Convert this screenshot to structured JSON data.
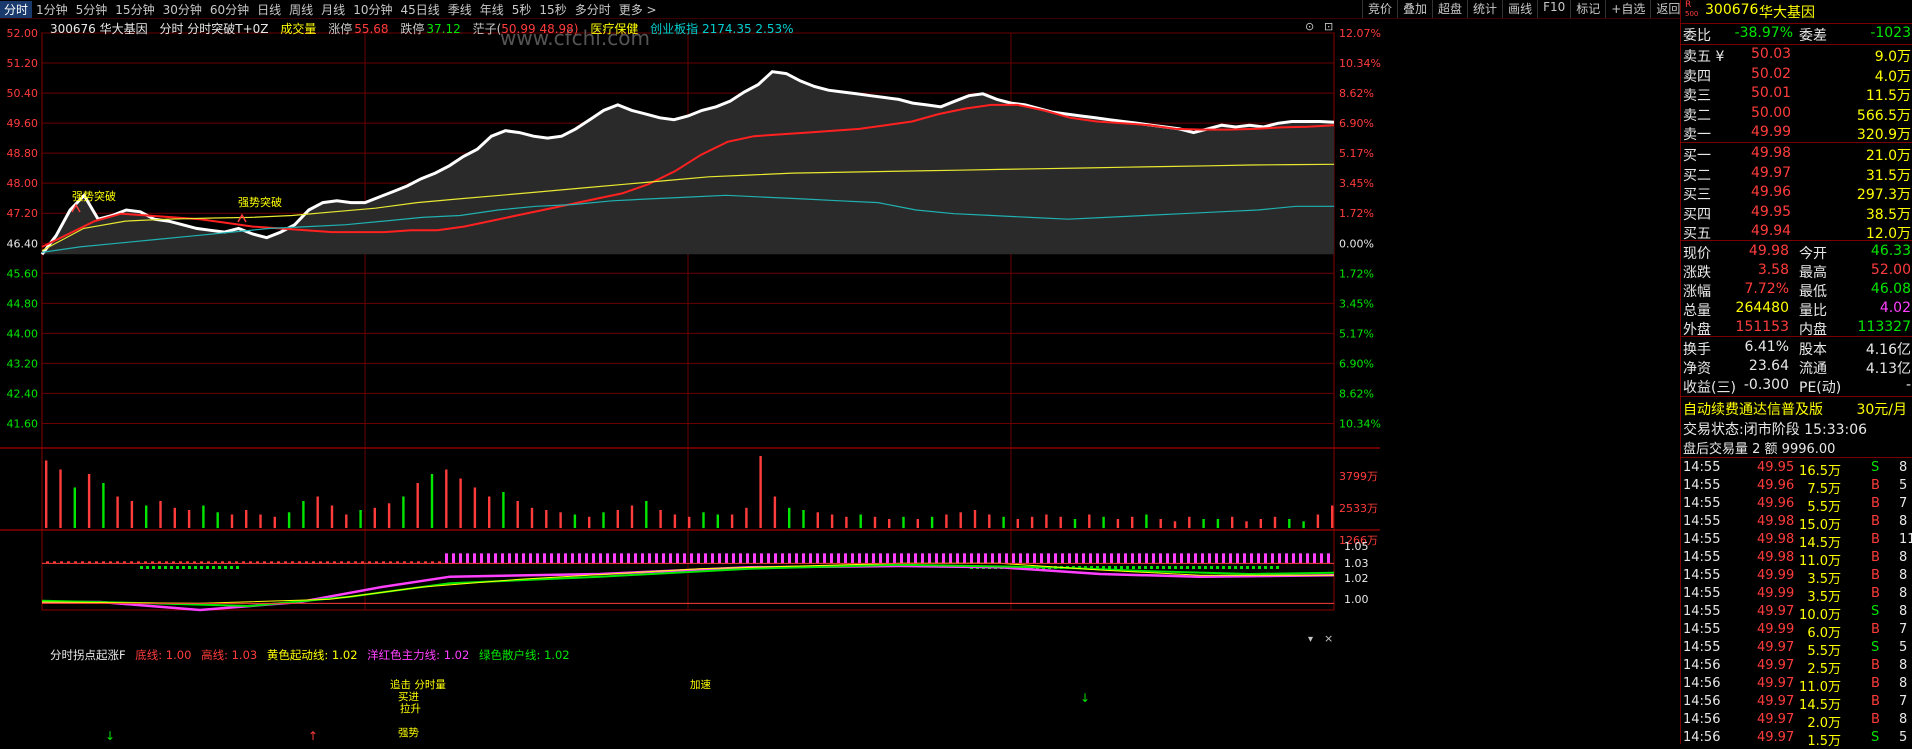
{
  "tabs": [
    {
      "label": "分时",
      "active": true
    },
    {
      "label": "1分钟"
    },
    {
      "label": "5分钟"
    },
    {
      "label": "15分钟"
    },
    {
      "label": "30分钟"
    },
    {
      "label": "60分钟"
    },
    {
      "label": "日线"
    },
    {
      "label": "周线"
    },
    {
      "label": "月线"
    },
    {
      "label": "10分钟"
    },
    {
      "label": "45日线"
    },
    {
      "label": "季线"
    },
    {
      "label": "年线"
    },
    {
      "label": "5秒"
    },
    {
      "label": "15秒"
    },
    {
      "label": "多分时"
    },
    {
      "label": "更多 >"
    }
  ],
  "tools": [
    "竞价",
    "叠加",
    "超盘",
    "统计",
    "画线",
    "F10",
    "标记",
    "+自选",
    "返回"
  ],
  "info_bar": {
    "code": "300676 华大基因",
    "name": "分时 分时突破T+0Z",
    "volume_label": "成交量",
    "limit_up_label": "涨停",
    "limit_up": "55.68",
    "limit_down_label": "跌停",
    "limit_down": "37.12",
    "candle_label": "茫子(",
    "candle_vals": "50.99 48.98)",
    "sector": "医疗保健",
    "index": "创业板指 2174.35 2.53%"
  },
  "watermark": "www.cfchi.com",
  "left_axis": [
    "52.00",
    "51.20",
    "50.40",
    "49.60",
    "48.80",
    "48.00",
    "47.20",
    "46.40",
    "45.60",
    "44.80",
    "44.00",
    "43.20",
    "42.40",
    "41.60"
  ],
  "right_axis": [
    "12.07%",
    "10.34%",
    "8.62%",
    "6.90%",
    "5.17%",
    "3.45%",
    "1.72%",
    "0.00%",
    "1.72%",
    "3.45%",
    "5.17%",
    "6.90%",
    "8.62%",
    "10.34%"
  ],
  "volume_axis": [
    "3799万",
    "2533万",
    "1266万"
  ],
  "ind_axis": [
    "1.05",
    "1.03",
    "1.02",
    "1.00"
  ],
  "annotations": [
    "强势突破",
    "强势突破"
  ],
  "ind_annotations": [
    "追击 分时量",
    "买进",
    "拉升",
    "强势",
    "加速"
  ],
  "indicator_bar": {
    "name": "分时拐点起涨F",
    "l1": "底线: 1.00",
    "l2": "高线: 1.03",
    "l3": "黄色起动线: 1.02",
    "l4": "洋红色主力线: 1.02",
    "l5": "绿色散户线: 1.02"
  },
  "chart_data": {
    "type": "line",
    "title": "",
    "ylim": [
      41.2,
      52.4
    ],
    "base_price": 46.4,
    "series": [
      {
        "values": [
          46.4,
          46.9,
          47.6,
          48.0,
          47.35,
          47.45,
          47.6,
          47.55,
          47.35,
          47.3,
          47.2,
          47.1,
          47.05,
          47.0,
          47.1,
          46.95,
          46.85,
          47.0,
          47.2,
          47.6,
          47.8,
          47.85,
          47.8,
          47.8,
          47.95,
          48.1,
          48.25,
          48.45,
          48.6,
          48.8,
          49.05,
          49.25,
          49.6,
          49.75,
          49.7,
          49.6,
          49.55,
          49.6,
          49.8,
          50.05,
          50.3,
          50.45,
          50.3,
          50.2,
          50.1,
          50.05,
          50.15,
          50.3,
          50.4,
          50.55,
          50.8,
          51.0,
          51.35,
          51.3,
          51.1,
          50.95,
          50.85,
          50.8,
          50.75,
          50.7,
          50.65,
          50.6,
          50.5,
          50.45,
          50.4,
          50.55,
          50.7,
          50.75,
          50.6,
          50.5,
          50.45,
          50.35,
          50.25,
          50.2,
          50.15,
          50.1,
          50.05,
          50.0,
          49.95,
          49.9,
          49.85,
          49.8,
          49.7,
          49.8,
          49.9,
          49.85,
          49.9,
          49.85,
          49.95,
          50.0,
          50.0,
          50.0,
          49.98
        ]
      },
      {
        "values": [
          46.6,
          46.95,
          47.3,
          47.5,
          47.45,
          47.4,
          47.35,
          47.25,
          47.15,
          47.1,
          47.05,
          47.0,
          47.0,
          47.0,
          47.05,
          47.05,
          47.15,
          47.3,
          47.45,
          47.6,
          47.75,
          47.9,
          48.05,
          48.3,
          48.65,
          49.1,
          49.45,
          49.6,
          49.65,
          49.7,
          49.75,
          49.8,
          49.9,
          50.0,
          50.2,
          50.35,
          50.45,
          50.45,
          50.3,
          50.1,
          50.0,
          49.95,
          49.9,
          49.8,
          49.78,
          49.78,
          49.8,
          49.84,
          49.86,
          49.9
        ]
      },
      {
        "values": [
          46.5,
          47.1,
          47.3,
          47.35,
          47.38,
          47.4,
          47.45,
          47.55,
          47.65,
          47.8,
          47.9,
          48.0,
          48.1,
          48.2,
          48.3,
          48.4,
          48.5,
          48.55,
          48.6,
          48.62,
          48.64,
          48.66,
          48.68,
          48.7,
          48.72,
          48.74,
          48.76,
          48.78,
          48.8,
          48.82,
          48.83,
          48.84
        ]
      },
      {
        "values": [
          46.45,
          46.6,
          46.7,
          46.8,
          46.9,
          47.0,
          47.1,
          47.15,
          47.2,
          47.3,
          47.4,
          47.45,
          47.6,
          47.7,
          47.75,
          47.85,
          47.9,
          47.95,
          48.0,
          47.95,
          47.9,
          47.85,
          47.8,
          47.6,
          47.5,
          47.45,
          47.4,
          47.35,
          47.4,
          47.45,
          47.5,
          47.55,
          47.6,
          47.7,
          47.7
        ]
      }
    ],
    "volume": [
      30,
      26,
      18,
      24,
      20,
      14,
      12,
      10,
      12,
      9,
      8,
      10,
      7,
      6,
      8,
      6,
      5,
      7,
      12,
      14,
      10,
      6,
      8,
      9,
      11,
      14,
      20,
      24,
      26,
      22,
      18,
      14,
      16,
      12,
      9,
      8,
      7,
      6,
      5,
      7,
      8,
      10,
      12,
      8,
      6,
      5,
      7,
      6,
      6,
      9,
      32,
      14,
      9,
      8,
      7,
      6,
      5,
      6,
      5,
      4,
      5,
      4,
      5,
      6,
      7,
      8,
      6,
      5,
      4,
      5,
      6,
      5,
      4,
      6,
      5,
      4,
      5,
      6,
      4,
      3,
      5,
      4,
      4,
      5,
      3,
      4,
      5,
      4,
      3,
      6,
      10
    ]
  },
  "quote": {
    "code": "300676",
    "name": "华大基因",
    "committee_ratio_label": "委比",
    "committee_ratio": "-38.97%",
    "committee_diff_label": "委差",
    "committee_diff": "-1023",
    "asks": [
      {
        "label": "卖五 ¥",
        "price": "50.03",
        "vol": "9.0万"
      },
      {
        "label": "卖四",
        "price": "50.02",
        "vol": "4.0万"
      },
      {
        "label": "卖三",
        "price": "50.01",
        "vol": "11.5万"
      },
      {
        "label": "卖二",
        "price": "50.00",
        "vol": "566.5万"
      },
      {
        "label": "卖一",
        "price": "49.99",
        "vol": "320.9万"
      }
    ],
    "bids": [
      {
        "label": "买一",
        "price": "49.98",
        "vol": "21.0万"
      },
      {
        "label": "买二",
        "price": "49.97",
        "vol": "31.5万"
      },
      {
        "label": "买三",
        "price": "49.96",
        "vol": "297.3万"
      },
      {
        "label": "买四",
        "price": "49.95",
        "vol": "38.5万"
      },
      {
        "label": "买五",
        "price": "49.94",
        "vol": "12.0万"
      }
    ],
    "stats": [
      {
        "l1": "现价",
        "v1": "49.98",
        "l2": "今开",
        "v2": "46.33",
        "c1": "red",
        "c2": "green"
      },
      {
        "l1": "涨跌",
        "v1": "3.58",
        "l2": "最高",
        "v2": "52.00",
        "c1": "red",
        "c2": "red"
      },
      {
        "l1": "涨幅",
        "v1": "7.72%",
        "l2": "最低",
        "v2": "46.08",
        "c1": "red",
        "c2": "green"
      },
      {
        "l1": "总量",
        "v1": "264480",
        "l2": "量比",
        "v2": "4.02",
        "c1": "yellow",
        "c2": "magenta"
      },
      {
        "l1": "外盘",
        "v1": "151153",
        "l2": "内盘",
        "v2": "113327",
        "c1": "red",
        "c2": "green"
      }
    ],
    "stats2": [
      {
        "l1": "换手",
        "v1": "6.41%",
        "l2": "股本",
        "v2": "4.16亿"
      },
      {
        "l1": "净资",
        "v1": "23.64",
        "l2": "流通",
        "v2": "4.13亿"
      },
      {
        "l1": "收益(三)",
        "v1": "-0.300",
        "l2": "PE(动)",
        "v2": "-"
      }
    ],
    "promo": "自动续费通达信普及版",
    "promo_price": "30元/月",
    "trade_status": "交易状态:闭市阶段 15:33:06",
    "after_hours": "盘后交易量 2 额 9996.00",
    "ticks": [
      {
        "t": "14:55",
        "p": "49.95",
        "v": "16.5万",
        "s": "S",
        "n": "8"
      },
      {
        "t": "14:55",
        "p": "49.96",
        "v": "7.5万",
        "s": "B",
        "n": "5"
      },
      {
        "t": "14:55",
        "p": "49.96",
        "v": "5.5万",
        "s": "B",
        "n": "7"
      },
      {
        "t": "14:55",
        "p": "49.98",
        "v": "15.0万",
        "s": "B",
        "n": "8"
      },
      {
        "t": "14:55",
        "p": "49.98",
        "v": "14.5万",
        "s": "B",
        "n": "11"
      },
      {
        "t": "14:55",
        "p": "49.98",
        "v": "11.0万",
        "s": "B",
        "n": "8"
      },
      {
        "t": "14:55",
        "p": "49.99",
        "v": "3.5万",
        "s": "B",
        "n": "8"
      },
      {
        "t": "14:55",
        "p": "49.99",
        "v": "3.5万",
        "s": "B",
        "n": "8"
      },
      {
        "t": "14:55",
        "p": "49.97",
        "v": "10.0万",
        "s": "S",
        "n": "8"
      },
      {
        "t": "14:55",
        "p": "49.99",
        "v": "6.0万",
        "s": "B",
        "n": "7"
      },
      {
        "t": "14:55",
        "p": "49.97",
        "v": "5.5万",
        "s": "S",
        "n": "5"
      },
      {
        "t": "14:56",
        "p": "49.97",
        "v": "2.5万",
        "s": "B",
        "n": "8"
      },
      {
        "t": "14:56",
        "p": "49.97",
        "v": "11.0万",
        "s": "B",
        "n": "8"
      },
      {
        "t": "14:56",
        "p": "49.97",
        "v": "14.5万",
        "s": "B",
        "n": "7"
      },
      {
        "t": "14:56",
        "p": "49.97",
        "v": "2.0万",
        "s": "B",
        "n": "8"
      },
      {
        "t": "14:56",
        "p": "49.97",
        "v": "1.5万",
        "s": "S",
        "n": "5"
      }
    ]
  }
}
